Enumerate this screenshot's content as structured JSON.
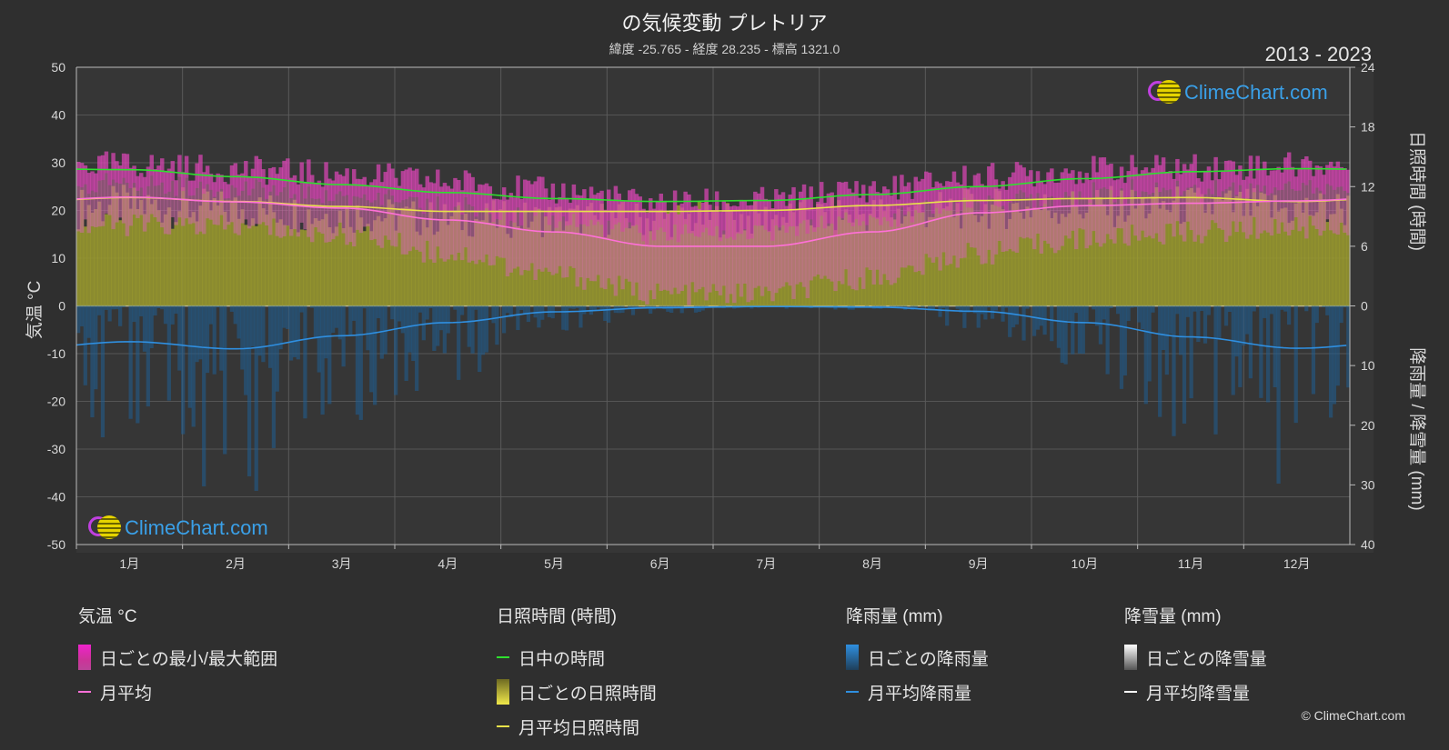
{
  "header": {
    "title": "の気候変動 プレトリア",
    "subtitle": "緯度 -25.765 - 経度 28.235 - 標高 1321.0",
    "years": "2013 - 2023"
  },
  "logo": {
    "text": "ClimeChart.com"
  },
  "copyright": "© ClimeChart.com",
  "colors": {
    "daylight": "#2ee02e",
    "sunshine_line": "#e8e24a",
    "temp_mean": "#ff70d8",
    "rain_line": "#2f8fe0",
    "snow_line": "#ffffff",
    "range_top": "#ee22cc",
    "sunshine_fill": "#9a9a2e",
    "rain_fill": "#1f5f94"
  },
  "legend": {
    "temp": {
      "header": "気温 °C",
      "range": "日ごとの最小/最大範囲",
      "mean": "月平均"
    },
    "sun": {
      "header": "日照時間 (時間)",
      "daylight": "日中の時間",
      "daily": "日ごとの日照時間",
      "mean": "月平均日照時間"
    },
    "rain": {
      "header": "降雨量 (mm)",
      "daily": "日ごとの降雨量",
      "mean": "月平均降雨量"
    },
    "snow": {
      "header": "降雪量 (mm)",
      "daily": "日ごとの降雪量",
      "mean": "月平均降雪量"
    }
  },
  "chart_data": {
    "type": "line",
    "months": [
      "1月",
      "2月",
      "3月",
      "4月",
      "5月",
      "6月",
      "7月",
      "8月",
      "9月",
      "10月",
      "11月",
      "12月"
    ],
    "left_axis": {
      "label": "気温 °C",
      "min": -50,
      "max": 50,
      "ticks": [
        50,
        40,
        30,
        20,
        10,
        0,
        -10,
        -20,
        -30,
        -40,
        -50
      ]
    },
    "right_axis_sun": {
      "label": "日照時間 (時間)",
      "min": 0,
      "max": 24,
      "ticks": [
        24,
        18,
        12,
        6,
        0
      ]
    },
    "right_axis_rain": {
      "label": "降雨量 / 降雪量 (mm)",
      "min": 0,
      "max": 40,
      "ticks": [
        0,
        10,
        20,
        30,
        40
      ]
    },
    "grid": true,
    "series": [
      {
        "name": "日中の時間",
        "axis": "sun",
        "values": [
          13.7,
          13.0,
          12.2,
          11.4,
          10.8,
          10.5,
          10.6,
          11.2,
          12.0,
          12.8,
          13.5,
          13.8
        ]
      },
      {
        "name": "月平均日照時間",
        "axis": "sun",
        "values": [
          10.9,
          10.5,
          10.0,
          9.5,
          9.5,
          9.5,
          9.6,
          10.1,
          10.6,
          10.8,
          10.9,
          10.5
        ]
      },
      {
        "name": "月平均",
        "axis": "temp",
        "values": [
          22.8,
          21.8,
          20.5,
          18.0,
          15.5,
          12.5,
          12.5,
          15.5,
          19.5,
          21.0,
          21.5,
          22.0
        ]
      },
      {
        "name": "月平均降雨量",
        "axis": "rain",
        "values": [
          6.0,
          7.2,
          5.0,
          2.8,
          1.0,
          0.3,
          0.1,
          0.2,
          0.9,
          2.8,
          5.2,
          7.1
        ]
      },
      {
        "name": "月平均降雪量",
        "axis": "rain",
        "values": [
          0,
          0,
          0,
          0,
          0,
          0,
          0,
          0,
          0,
          0,
          0,
          0
        ]
      }
    ],
    "temp_range_max": [
      29.5,
      28.5,
      27.5,
      26.0,
      24.0,
      21.5,
      22.0,
      24.5,
      27.0,
      28.5,
      29.0,
      29.5
    ],
    "temp_range_min": [
      17.0,
      16.5,
      15.0,
      11.0,
      6.5,
      2.5,
      2.5,
      6.0,
      11.0,
      14.0,
      15.5,
      16.5
    ]
  }
}
